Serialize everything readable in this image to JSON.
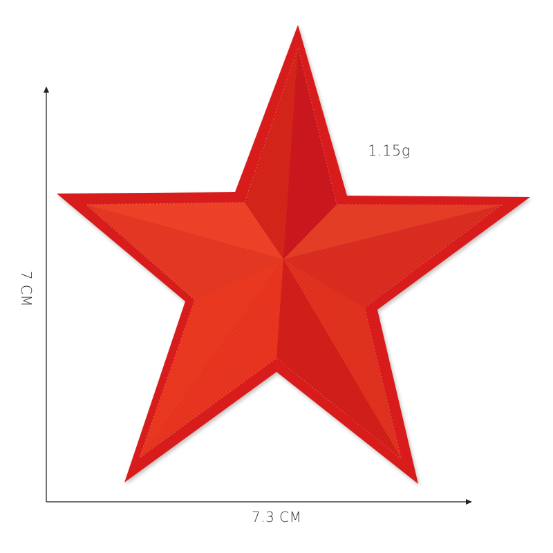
{
  "product": {
    "weight_label": "1.15g",
    "width_label": "7.3 CM",
    "height_label": "7 CM"
  },
  "colors": {
    "star_border": "#d81e1e",
    "star_face_light": "#ec3a22",
    "star_face_mid": "#e32a1c",
    "star_face_dark": "#c8141a",
    "axis": "#222222",
    "background": "#ffffff"
  }
}
